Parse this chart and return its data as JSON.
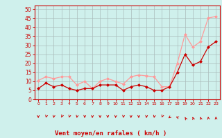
{
  "x": [
    0,
    1,
    2,
    3,
    4,
    5,
    6,
    7,
    8,
    9,
    10,
    11,
    12,
    13,
    14,
    15,
    16,
    17,
    18,
    19,
    20,
    21,
    22,
    23
  ],
  "wind_avg": [
    6,
    9,
    7,
    8,
    6,
    5,
    6,
    6,
    8,
    8,
    8,
    5,
    7,
    8,
    7,
    5,
    5,
    7,
    15,
    25,
    19,
    21,
    29,
    32
  ],
  "wind_gust": [
    10.5,
    12.5,
    11.5,
    12.5,
    12.5,
    8,
    10,
    6,
    10,
    11.5,
    10,
    8.5,
    12.5,
    13.5,
    13,
    12.5,
    7,
    7,
    20,
    36,
    29,
    32,
    45,
    46
  ],
  "xlabel": "Vent moyen/en rafales ( km/h )",
  "bg_color": "#cff0ec",
  "grid_color": "#aabbbb",
  "axis_color": "#cc0000",
  "line_avg_color": "#cc0000",
  "line_gust_color": "#ff9999",
  "marker": "D",
  "markersize": 2,
  "ylim": [
    0,
    52
  ],
  "yticks": [
    0,
    5,
    10,
    15,
    20,
    25,
    30,
    35,
    40,
    45,
    50
  ],
  "xlim": [
    -0.5,
    23.5
  ],
  "wind_dirs": [
    180,
    210,
    195,
    225,
    210,
    200,
    190,
    185,
    180,
    175,
    195,
    200,
    180,
    185,
    190,
    200,
    220,
    250,
    280,
    310,
    320,
    330,
    340,
    350
  ]
}
